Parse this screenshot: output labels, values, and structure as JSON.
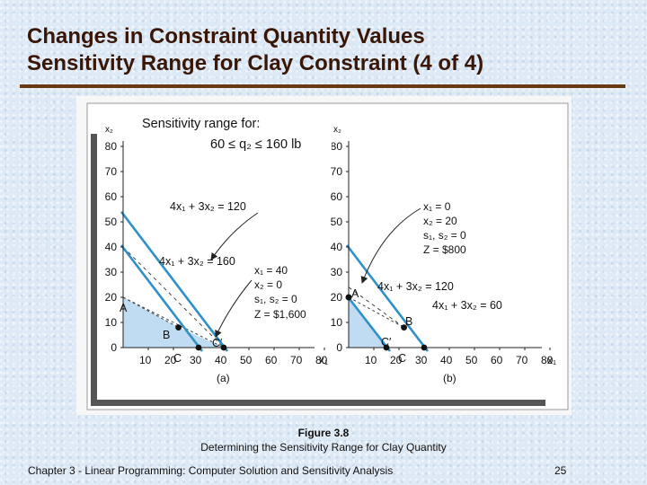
{
  "title": {
    "line1": "Changes in Constraint Quantity Values",
    "line2": "Sensitivity Range for Clay Constraint (4 of 4)"
  },
  "sensitivity": {
    "heading": "Sensitivity range for:",
    "range": "60 ≤ q₂ ≤ 160 lb"
  },
  "chart_a": {
    "y_axis_label": "x₂",
    "x_axis_label": "x₁",
    "y_ticks": [
      "0",
      "10",
      "20",
      "30",
      "40",
      "50",
      "60",
      "70",
      "80"
    ],
    "x_ticks": [
      "10",
      "20",
      "30",
      "40",
      "50",
      "60",
      "70",
      "80"
    ],
    "panel_label": "(a)",
    "constraint_upper": "4x₁ + 3x₂ = 120",
    "constraint_lower": "4x₁ + 3x₂ = 160",
    "point_labels": [
      "A",
      "B",
      "C",
      "C′"
    ],
    "solution": [
      "x₁ = 40",
      "x₂ = 0",
      "s₁, s₂ = 0",
      "Z = $1,600"
    ]
  },
  "chart_b": {
    "y_axis_label": "x₂",
    "x_axis_label": "x₁",
    "y_ticks": [
      "0",
      "10",
      "20",
      "30",
      "40",
      "50",
      "60",
      "70",
      "80"
    ],
    "x_ticks": [
      "10",
      "20",
      "30",
      "40",
      "50",
      "60",
      "70",
      "80"
    ],
    "panel_label": "(b)",
    "constraint_upper": "4x₁ + 3x₂ = 120",
    "constraint_lower": "4x₁ + 3x₂ = 60",
    "point_labels": [
      "A",
      "B",
      "C",
      "C′"
    ],
    "solution": [
      "x₁ = 0",
      "x₂ = 20",
      "s₁, s₂ = 0",
      "Z = $800"
    ]
  },
  "caption": {
    "figure": "Figure 3.8",
    "text": "Determining the Sensitivity Range for Clay Quantity"
  },
  "footer": {
    "left": "Chapter 3 - Linear Programming:  Computer Solution and Sensitivity Analysis",
    "page": "25"
  },
  "colors": {
    "title": "#3a1606",
    "rule": "#6a3a12",
    "constraint_line": "#2f8fc8",
    "feasible_region": "#bfdcf3",
    "background": "#dde9f5"
  },
  "chart_data": [
    {
      "type": "line",
      "title": "(a)",
      "xlabel": "x₁",
      "ylabel": "x₂",
      "xlim": [
        0,
        80
      ],
      "ylim": [
        0,
        80
      ],
      "series": [
        {
          "name": "4x₁ + 3x₂ = 120",
          "x": [
            0,
            30
          ],
          "y": [
            40,
            0
          ]
        },
        {
          "name": "4x₁ + 3x₂ = 160",
          "x": [
            0,
            40
          ],
          "y": [
            53.3,
            0
          ]
        }
      ],
      "points": [
        {
          "label": "A",
          "x": 0,
          "y": 20
        },
        {
          "label": "B",
          "x": 22,
          "y": 8
        },
        {
          "label": "C",
          "x": 30,
          "y": 0
        },
        {
          "label": "C′",
          "x": 40,
          "y": 0
        }
      ]
    },
    {
      "type": "line",
      "title": "(b)",
      "xlabel": "x₁",
      "ylabel": "x₂",
      "xlim": [
        0,
        80
      ],
      "ylim": [
        0,
        80
      ],
      "series": [
        {
          "name": "4x₁ + 3x₂ = 120",
          "x": [
            0,
            30
          ],
          "y": [
            40,
            0
          ]
        },
        {
          "name": "4x₁ + 3x₂ = 60",
          "x": [
            0,
            15
          ],
          "y": [
            20,
            0
          ]
        }
      ],
      "points": [
        {
          "label": "A",
          "x": 0,
          "y": 20
        },
        {
          "label": "B",
          "x": 22,
          "y": 8
        },
        {
          "label": "C",
          "x": 30,
          "y": 0
        },
        {
          "label": "C′",
          "x": 15,
          "y": 0
        }
      ]
    }
  ]
}
